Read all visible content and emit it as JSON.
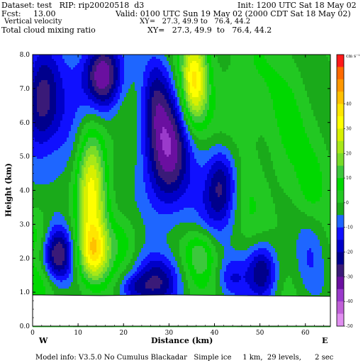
{
  "header": {
    "dataset_line": "Dataset: test   RIP: rip20020518  d3",
    "init_line": "Init: 1200 UTC Sat 18 May 02",
    "fcst_line": "Fcst:     13.00",
    "valid_line": "Valid: 0100 UTC Sun 19 May 02 (2000 CDT Sat 18 May 02)",
    "field1_label": "Vertical velocity",
    "field1_xy": "XY=   27.3, 49.9 to   76.4, 44.2",
    "field2_label": "Total cloud mixing ratio",
    "field2_xy": "XY=   27.3, 49.9  to   76.4, 44.2"
  },
  "footer": {
    "model_info": "Model info: V3.5.0 No Cumulus Blackadar   Simple ice     1 km,  29 levels,      2 sec"
  },
  "chart_data": {
    "type": "heatmap",
    "title": "",
    "xlabel": "Distance (km)",
    "ylabel": "Height (km)",
    "x_ticks": [
      "0",
      "10",
      "20",
      "30",
      "40",
      "50",
      "60"
    ],
    "y_ticks": [
      "0.0",
      "1.0",
      "2.0",
      "3.0",
      "4.0",
      "5.0",
      "6.0",
      "7.0",
      "8.0"
    ],
    "xlim": [
      0,
      65.5
    ],
    "ylim": [
      0,
      8
    ],
    "ground_height": 0.88,
    "endpoint_labels": {
      "left": "W",
      "right": "E"
    },
    "colorbar": {
      "units": "cm s⁻¹",
      "labels": [
        "40",
        "30",
        "20",
        "10",
        "0",
        "-10",
        "-20",
        "-30",
        "-40",
        "-50"
      ],
      "colors": [
        "#ff1a1a",
        "#ff6a00",
        "#ff9800",
        "#ffc000",
        "#ffe600",
        "#ffff00",
        "#d8f000",
        "#a8e818",
        "#78dc28",
        "#3cc83c",
        "#00d800",
        "#22c822",
        "#1aaa1a",
        "#1e66ff",
        "#1010ff",
        "#0000c8",
        "#00008c",
        "#3a1a78",
        "#6a0fa0",
        "#9a3acb",
        "#c060d8",
        "#e08ef0"
      ]
    },
    "blobs": [
      {
        "x": 2,
        "y": 6.7,
        "sx": 3,
        "sy": 1.1,
        "amp": -30
      },
      {
        "x": 8,
        "y": 5.5,
        "sx": 3,
        "sy": 1.3,
        "amp": -10
      },
      {
        "x": 15.5,
        "y": 7.4,
        "sx": 3,
        "sy": 0.75,
        "amp": -38
      },
      {
        "x": 29.5,
        "y": 5.1,
        "sx": 3.8,
        "sy": 1.3,
        "amp": -34
      },
      {
        "x": 27,
        "y": 6.8,
        "sx": 2,
        "sy": 0.9,
        "amp": -12
      },
      {
        "x": 13,
        "y": 4.1,
        "sx": 2.3,
        "sy": 1.3,
        "amp": 32
      },
      {
        "x": 35.5,
        "y": 7.2,
        "sx": 2.1,
        "sy": 0.95,
        "amp": 36
      },
      {
        "x": 41.5,
        "y": 4.2,
        "sx": 2.5,
        "sy": 0.8,
        "amp": -25
      },
      {
        "x": 46.5,
        "y": 6.8,
        "sx": 3.5,
        "sy": 1.2,
        "amp": 6
      },
      {
        "x": 48,
        "y": 3.7,
        "sx": 2.2,
        "sy": 0.8,
        "amp": 3
      },
      {
        "x": 56,
        "y": 5.5,
        "sx": 3,
        "sy": 1.5,
        "amp": 5
      },
      {
        "x": 61,
        "y": 4,
        "sx": 2,
        "sy": 0.8,
        "amp": 6
      },
      {
        "x": 5.5,
        "y": 2.1,
        "sx": 2.3,
        "sy": 0.55,
        "amp": -28
      },
      {
        "x": 13.5,
        "y": 2.15,
        "sx": 2.3,
        "sy": 0.6,
        "amp": 28
      },
      {
        "x": 27.5,
        "y": 1.3,
        "sx": 3.6,
        "sy": 0.55,
        "amp": -22
      },
      {
        "x": 37,
        "y": 2.1,
        "sx": 2.4,
        "sy": 0.55,
        "amp": 14
      },
      {
        "x": 50.5,
        "y": 1.6,
        "sx": 2.4,
        "sy": 0.6,
        "amp": -26
      },
      {
        "x": 44,
        "y": 1.4,
        "sx": 2.2,
        "sy": 0.45,
        "amp": -12
      },
      {
        "x": 61,
        "y": 2.1,
        "sx": 2.2,
        "sy": 0.9,
        "amp": -8
      },
      {
        "x": 20,
        "y": 2.5,
        "sx": 2.5,
        "sy": 0.55,
        "amp": 8
      },
      {
        "x": 1.5,
        "y": 2.7,
        "sx": 2,
        "sy": 0.6,
        "amp": 8
      },
      {
        "x": 38,
        "y": 3.2,
        "sx": 3,
        "sy": 0.6,
        "amp": -6
      },
      {
        "x": 1.5,
        "y": 1.3,
        "sx": 2.5,
        "sy": 0.4,
        "amp": 6
      },
      {
        "x": 22,
        "y": 1.1,
        "sx": 2.5,
        "sy": 0.3,
        "amp": -14
      }
    ]
  }
}
